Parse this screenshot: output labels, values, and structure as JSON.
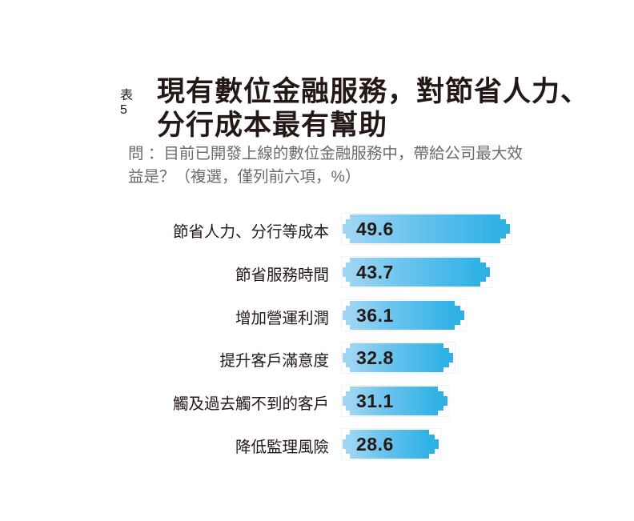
{
  "header": {
    "table_number": "表5",
    "title_line1": "現有數位金融服務，對節省人力、",
    "title_line2": "分行成本最有幫助"
  },
  "question": {
    "line1": "問 ：目前已開發上線的數位金融服務中，帶給公司最大效",
    "line2": "益是？（複選，僅列前六項，%）"
  },
  "colors": {
    "bar_gradient_start": "#9fd6f3",
    "bar_gradient_end": "#2fb1e6",
    "text": "#231815",
    "question_text": "#6d6a6a"
  },
  "chart_data": {
    "type": "bar",
    "orientation": "horizontal",
    "title": "表5 現有數位金融服務，對節省人力、分行成本最有幫助",
    "subtitle": "問：目前已開發上線的數位金融服務中，帶給公司最大效益是？（複選，僅列前六項，%）",
    "xlabel": "",
    "ylabel": "",
    "unit": "%",
    "grid": false,
    "legend": null,
    "categories": [
      "節省人力、分行等成本",
      "節省服務時間",
      "增加營運利潤",
      "提升客戶滿意度",
      "觸及過去觸不到的客戶",
      "降低監理風險"
    ],
    "values": [
      49.6,
      43.7,
      36.1,
      32.8,
      31.1,
      28.6
    ],
    "value_labels": [
      "49.6",
      "43.7",
      "36.1",
      "32.8",
      "31.1",
      "28.6"
    ]
  }
}
